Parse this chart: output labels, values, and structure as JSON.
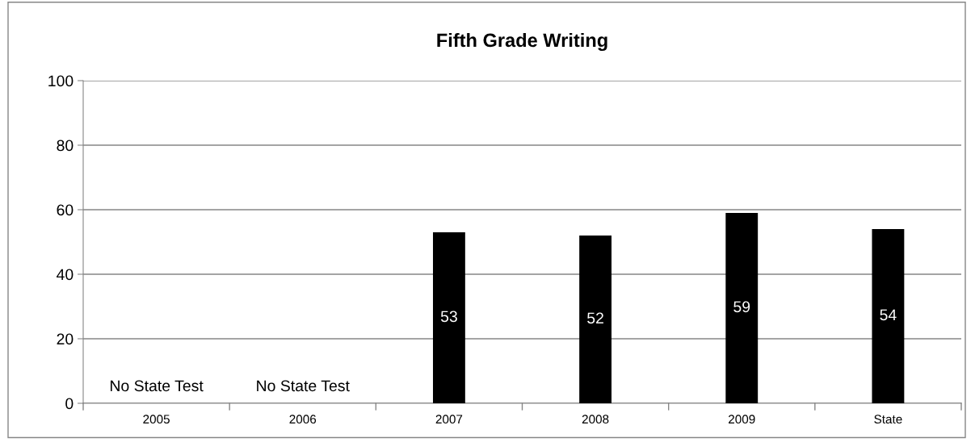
{
  "chart_data": {
    "type": "bar",
    "title": "Fifth Grade Writing",
    "categories": [
      "2005",
      "2006",
      "2007",
      "2008",
      "2009",
      "State"
    ],
    "values": [
      null,
      null,
      53,
      52,
      59,
      54
    ],
    "color": "#000000",
    "ylim": [
      0,
      100
    ],
    "yticks": [
      0,
      20,
      40,
      60,
      80,
      100
    ],
    "grid": "y",
    "data_labels": true,
    "legend": false,
    "annotations": [
      "No State Test",
      "No State Test"
    ]
  }
}
